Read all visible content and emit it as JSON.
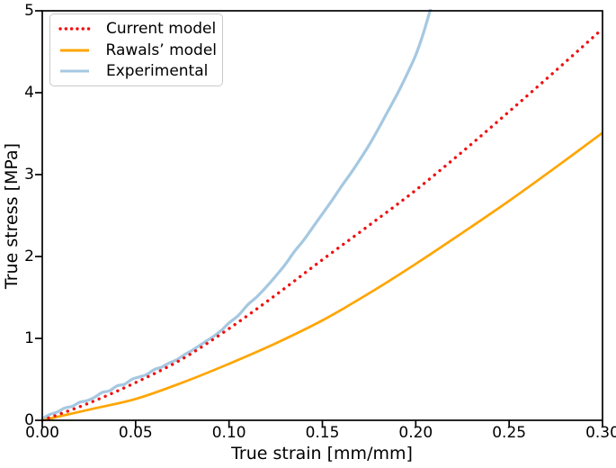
{
  "figure": {
    "background": "#ffffff",
    "axis_color": "#000000",
    "text_color": "#000000",
    "legend_border_color": "#c9c9c9"
  },
  "chart_data": {
    "type": "line",
    "title": "",
    "xlabel": "True strain [mm/mm]",
    "ylabel": "True stress [MPa]",
    "xlim": [
      0,
      0.3
    ],
    "ylim": [
      0,
      5
    ],
    "x_ticks": [
      0,
      0.05,
      0.1,
      0.15,
      0.2,
      0.25,
      0.3
    ],
    "x_tick_labels": [
      "0.00",
      "0.05",
      "0.10",
      "0.15",
      "0.20",
      "0.25",
      "0.30"
    ],
    "y_ticks": [
      0,
      1,
      2,
      3,
      4,
      5
    ],
    "y_tick_labels": [
      "0",
      "1",
      "2",
      "3",
      "4",
      "5"
    ],
    "grid": false,
    "legend_position": "upper-left",
    "series": [
      {
        "name": "Current model",
        "color": "#f01010",
        "style": "dotted",
        "line_width": 3.4,
        "x": [
          0,
          0.025,
          0.05,
          0.075,
          0.1,
          0.125,
          0.15,
          0.175,
          0.2,
          0.225,
          0.25,
          0.275,
          0.3
        ],
        "y": [
          0,
          0.21,
          0.46,
          0.75,
          1.12,
          1.53,
          1.96,
          2.38,
          2.81,
          3.28,
          3.77,
          4.27,
          4.78
        ]
      },
      {
        "name": "Rawals’ model",
        "color": "#ffa500",
        "style": "solid",
        "line_width": 2.7,
        "x": [
          0,
          0.025,
          0.05,
          0.075,
          0.1,
          0.125,
          0.15,
          0.175,
          0.2,
          0.225,
          0.25,
          0.275,
          0.3
        ],
        "y": [
          0,
          0.13,
          0.26,
          0.46,
          0.69,
          0.94,
          1.22,
          1.55,
          1.91,
          2.29,
          2.68,
          3.09,
          3.51
        ]
      },
      {
        "name": "Experimental",
        "color": "#a5c8e1",
        "style": "solid",
        "line_width": 3.2,
        "x": [
          0,
          0.004,
          0.008,
          0.012,
          0.016,
          0.02,
          0.024,
          0.028,
          0.032,
          0.036,
          0.04,
          0.044,
          0.048,
          0.052,
          0.056,
          0.06,
          0.064,
          0.068,
          0.072,
          0.076,
          0.08,
          0.084,
          0.088,
          0.092,
          0.096,
          0.1,
          0.105,
          0.11,
          0.115,
          0.12,
          0.125,
          0.13,
          0.135,
          0.14,
          0.145,
          0.15,
          0.155,
          0.16,
          0.165,
          0.17,
          0.175,
          0.18,
          0.185,
          0.19,
          0.195,
          0.2,
          0.204,
          0.208
        ],
        "y": [
          0.02,
          0.07,
          0.1,
          0.15,
          0.17,
          0.22,
          0.24,
          0.28,
          0.34,
          0.36,
          0.42,
          0.44,
          0.5,
          0.53,
          0.56,
          0.62,
          0.65,
          0.7,
          0.74,
          0.8,
          0.85,
          0.91,
          0.97,
          1.03,
          1.1,
          1.19,
          1.28,
          1.41,
          1.51,
          1.63,
          1.76,
          1.9,
          2.06,
          2.2,
          2.36,
          2.52,
          2.68,
          2.85,
          3.01,
          3.18,
          3.36,
          3.56,
          3.77,
          3.98,
          4.21,
          4.46,
          4.72,
          5.03
        ]
      }
    ]
  }
}
